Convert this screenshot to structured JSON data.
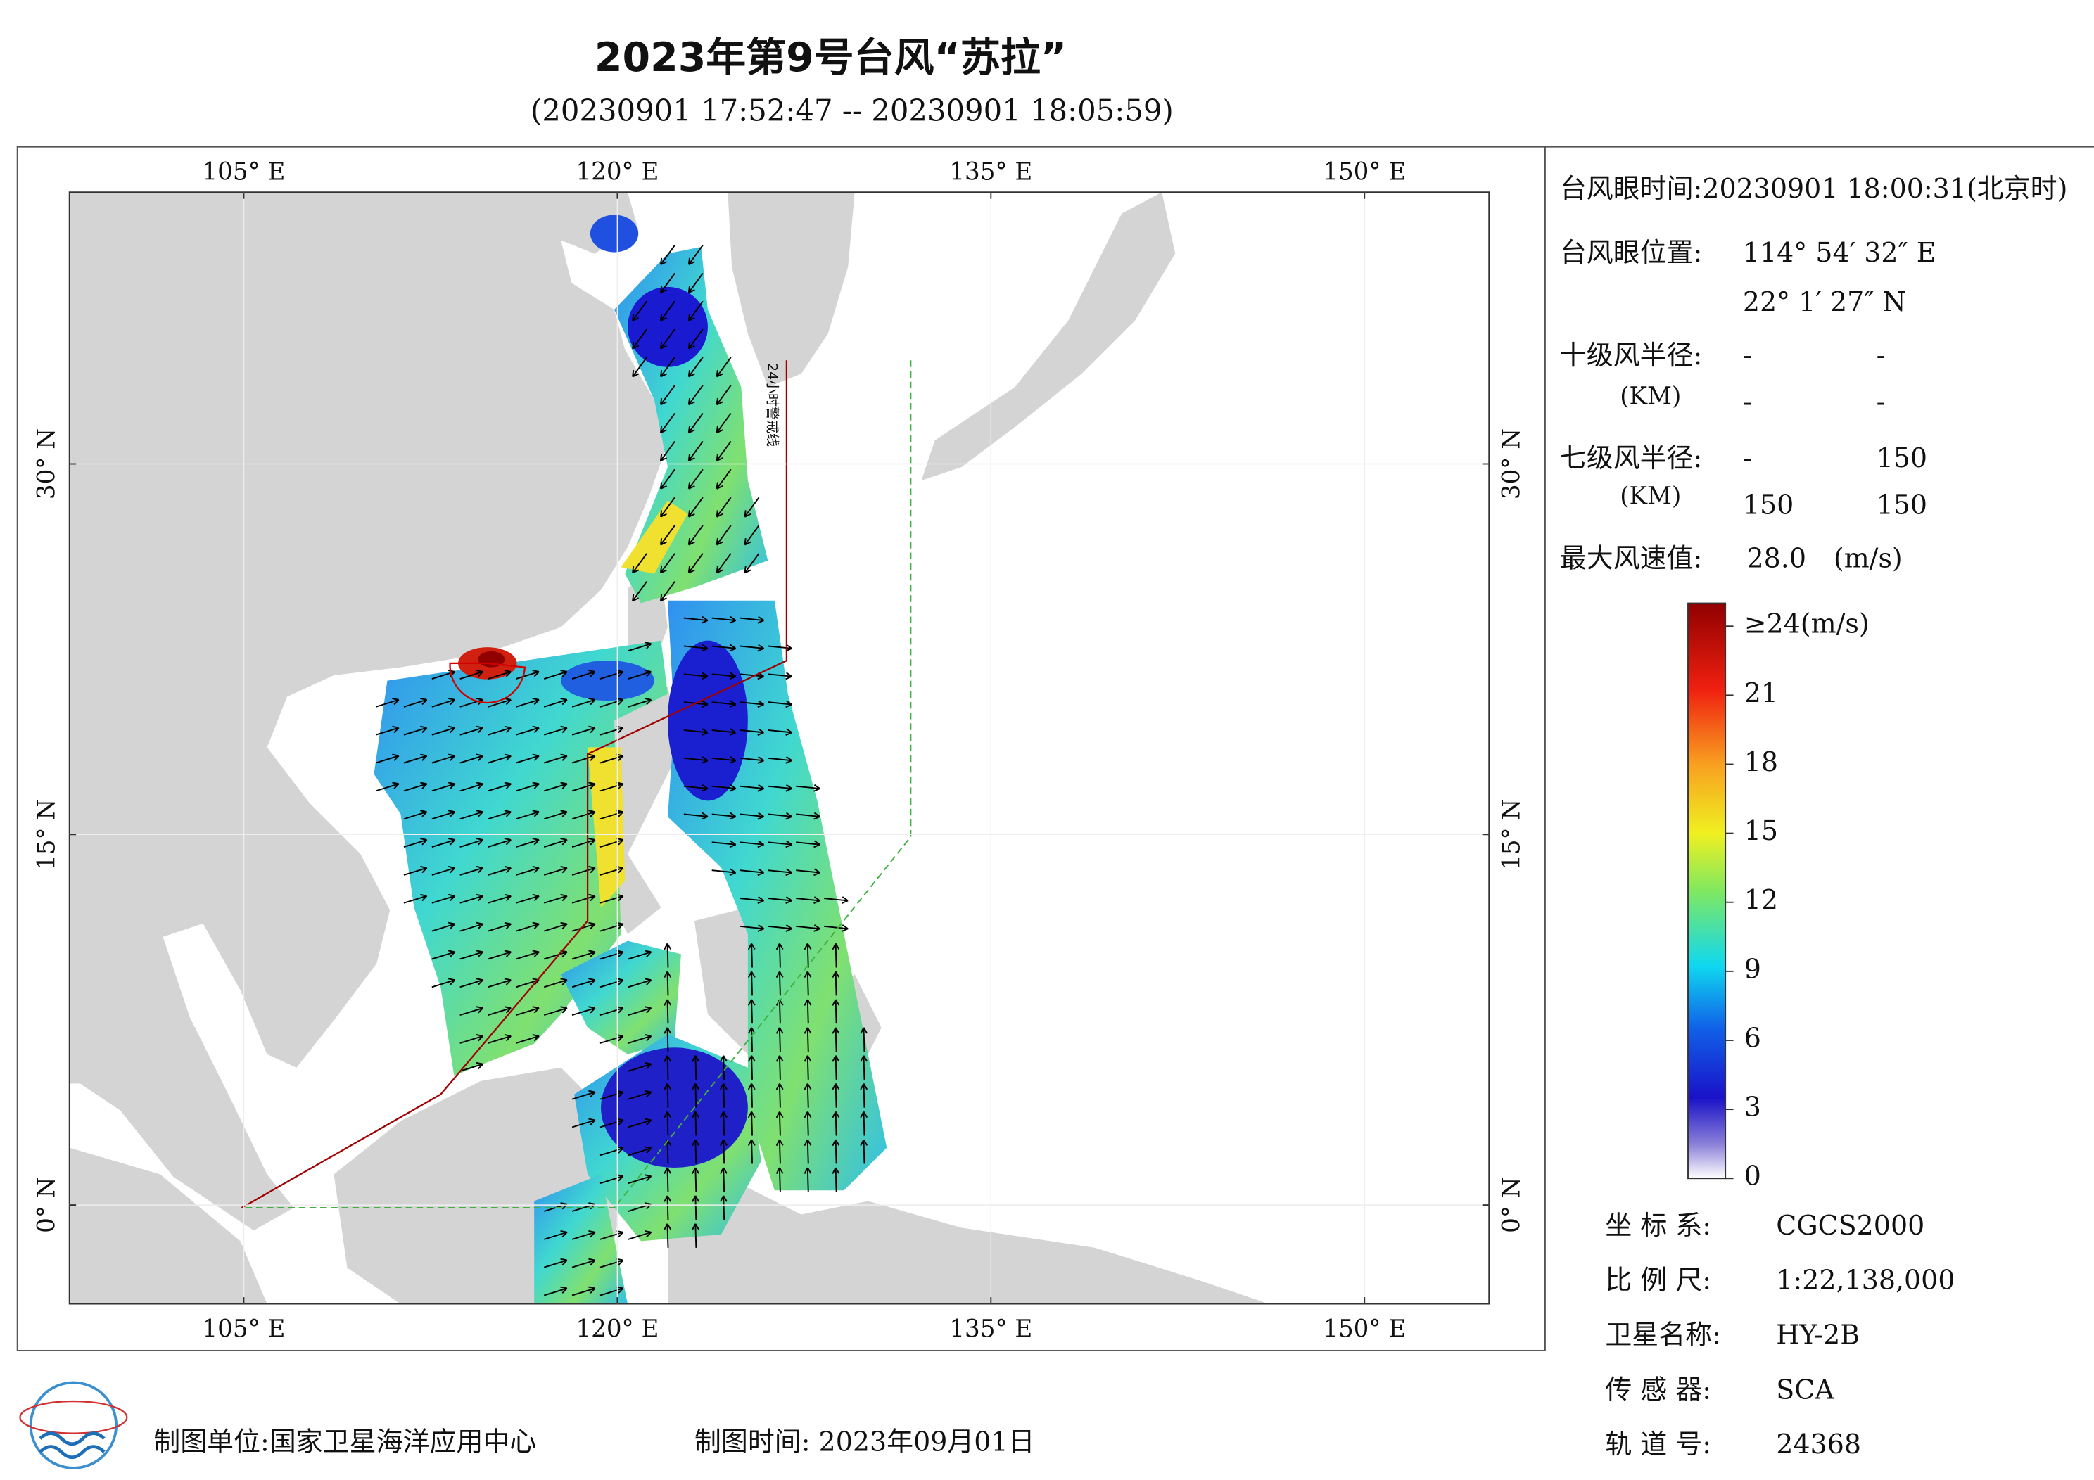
{
  "header": {
    "title": "2023年第9号台风“苏拉”",
    "subtitle": "(20230901 17:52:47 -- 20230901 18:05:59)"
  },
  "map": {
    "xlim": [
      98,
      155
    ],
    "ylim": [
      -4,
      41
    ],
    "xticks": [
      {
        "value": 105,
        "label": "105° E"
      },
      {
        "value": 120,
        "label": "120° E"
      },
      {
        "value": 135,
        "label": "135° E"
      },
      {
        "value": 150,
        "label": "150° E"
      }
    ],
    "yticks": [
      {
        "value": 0,
        "label": "0° N"
      },
      {
        "value": 15,
        "label": "15° N"
      },
      {
        "value": 30,
        "label": "30° N"
      }
    ],
    "line_label": "24小时警戒线"
  },
  "info": {
    "eye_time": "台风眼时间:20230901 18:00:31(北京时)",
    "eye_pos_label": "台风眼位置:",
    "eye_lon": "114° 54′ 32″ E",
    "eye_lat": "22° 1′ 27″ N",
    "r10_label": "十级风半径:",
    "r10_unit": "(KM)",
    "r10": [
      "-",
      "-",
      "-",
      "-"
    ],
    "r7_label": "七级风半径:",
    "r7_unit": "(KM)",
    "r7": [
      "-",
      "150",
      "150",
      "150"
    ],
    "vmax_label": "最大风速值:",
    "vmax": "28.0",
    "vmax_unit": "(m/s)"
  },
  "colorbar": {
    "range": [
      0,
      25
    ],
    "ticks": [
      0,
      3,
      6,
      9,
      12,
      15,
      18,
      21,
      {
        "value": 24,
        "label": "≥24(m/s)"
      }
    ]
  },
  "meta": [
    {
      "label": "坐 标 系:",
      "value": "CGCS2000"
    },
    {
      "label": "比 例 尺:",
      "value": "1:22,138,000"
    },
    {
      "label": "卫星名称:",
      "value": "HY-2B"
    },
    {
      "label": "传 感 器:",
      "value": "SCA"
    },
    {
      "label": "轨 道 号:",
      "value": "24368"
    }
  ],
  "footer": {
    "unit": "制图单位:国家卫星海洋应用中心",
    "time": "制图时间: 2023年09月01日"
  }
}
